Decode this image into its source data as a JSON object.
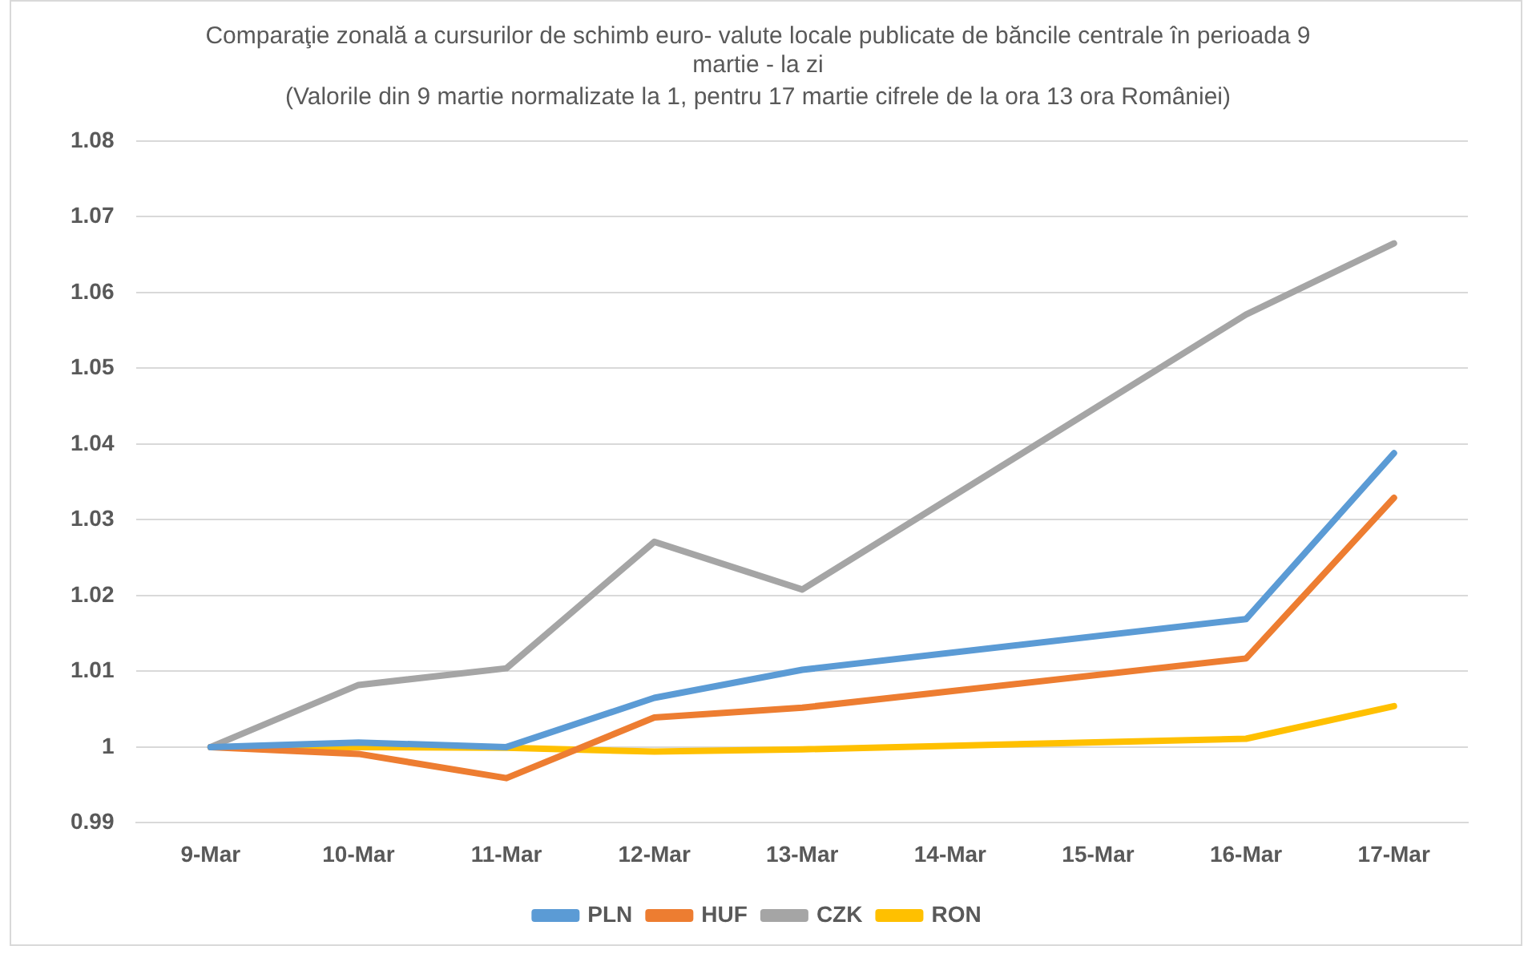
{
  "chart_data": {
    "type": "line",
    "title": "Comparaţie zonală a cursurilor de schimb euro- valute locale publicate de băncile centrale în perioada 9 martie - la zi",
    "subtitle": "(Valorile din 9 martie normalizate la 1, pentru 17 martie cifrele de la ora 13 ora României)",
    "categories": [
      "9-Mar",
      "10-Mar",
      "11-Mar",
      "12-Mar",
      "13-Mar",
      "14-Mar",
      "15-Mar",
      "16-Mar",
      "17-Mar"
    ],
    "series": [
      {
        "name": "PLN",
        "color": "#5b9bd5",
        "values": [
          1,
          1.0006,
          1.0,
          1.0065,
          1.0102,
          null,
          null,
          1.0169,
          1.0388
        ]
      },
      {
        "name": "HUF",
        "color": "#ed7d31",
        "values": [
          1,
          0.9991,
          0.9959,
          1.0039,
          1.0052,
          null,
          null,
          1.0117,
          1.0329
        ]
      },
      {
        "name": "CZK",
        "color": "#a5a5a5",
        "values": [
          1,
          1.0082,
          1.0104,
          1.0271,
          1.0208,
          null,
          null,
          1.0571,
          1.0665
        ]
      },
      {
        "name": "RON",
        "color": "#ffc000",
        "values": [
          1,
          1.0,
          0.9999,
          0.9994,
          0.9997,
          null,
          null,
          1.0011,
          1.0054
        ]
      }
    ],
    "ylim": [
      0.99,
      1.08
    ],
    "yticks": [
      0.99,
      1,
      1.01,
      1.02,
      1.03,
      1.04,
      1.05,
      1.06,
      1.07,
      1.08
    ],
    "grid": "y",
    "legend": "bottom",
    "marker": "none",
    "line_style": "solid"
  }
}
